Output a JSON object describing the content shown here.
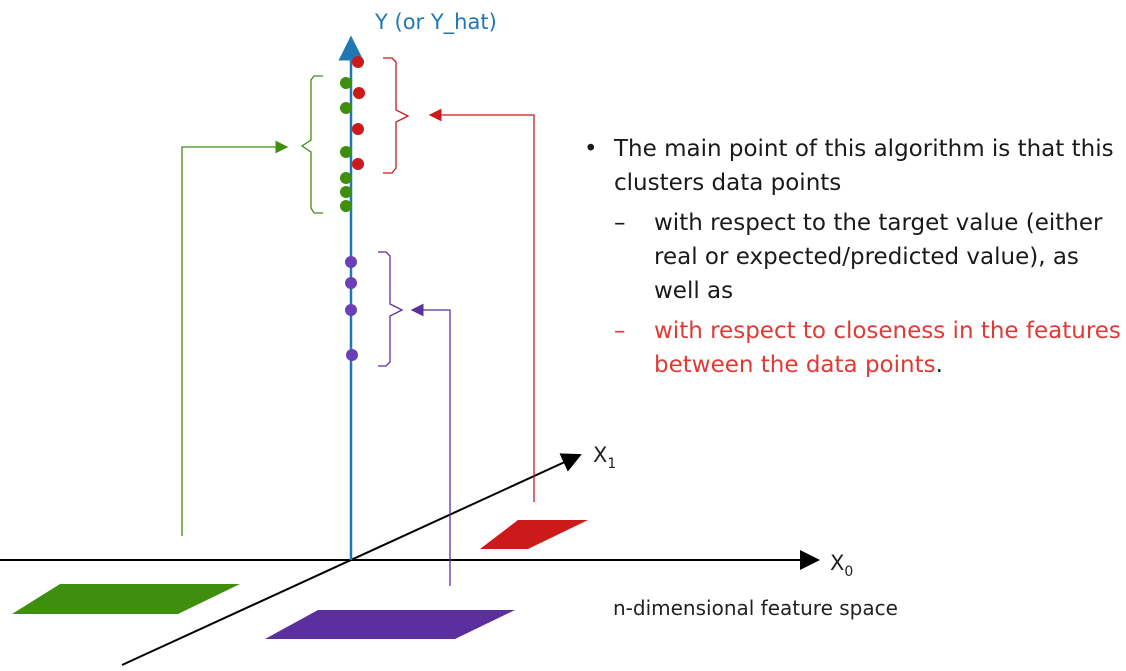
{
  "axes": {
    "y_label": "Y (or Y_hat)",
    "x0_label": "X",
    "x0_sub": "0",
    "x1_label": "X",
    "x1_sub": "1"
  },
  "colors": {
    "y_axis": "#1f77b4",
    "green": "#3f8f0e",
    "red": "#cc1a1a",
    "purple": "#5b2f9e",
    "text_red": "#e03a34"
  },
  "text": {
    "bullet_main": "The main point of this algorithm is that this clusters data points",
    "sub_dash_1": "–",
    "sub1": "with respect to the target value (either real or expected/predicted value), as well as",
    "sub_dash_2": "–",
    "sub2_red": "with respect to closeness in the features between the data points",
    "sub2_end": ".",
    "caption": "n-dimensional feature space"
  }
}
